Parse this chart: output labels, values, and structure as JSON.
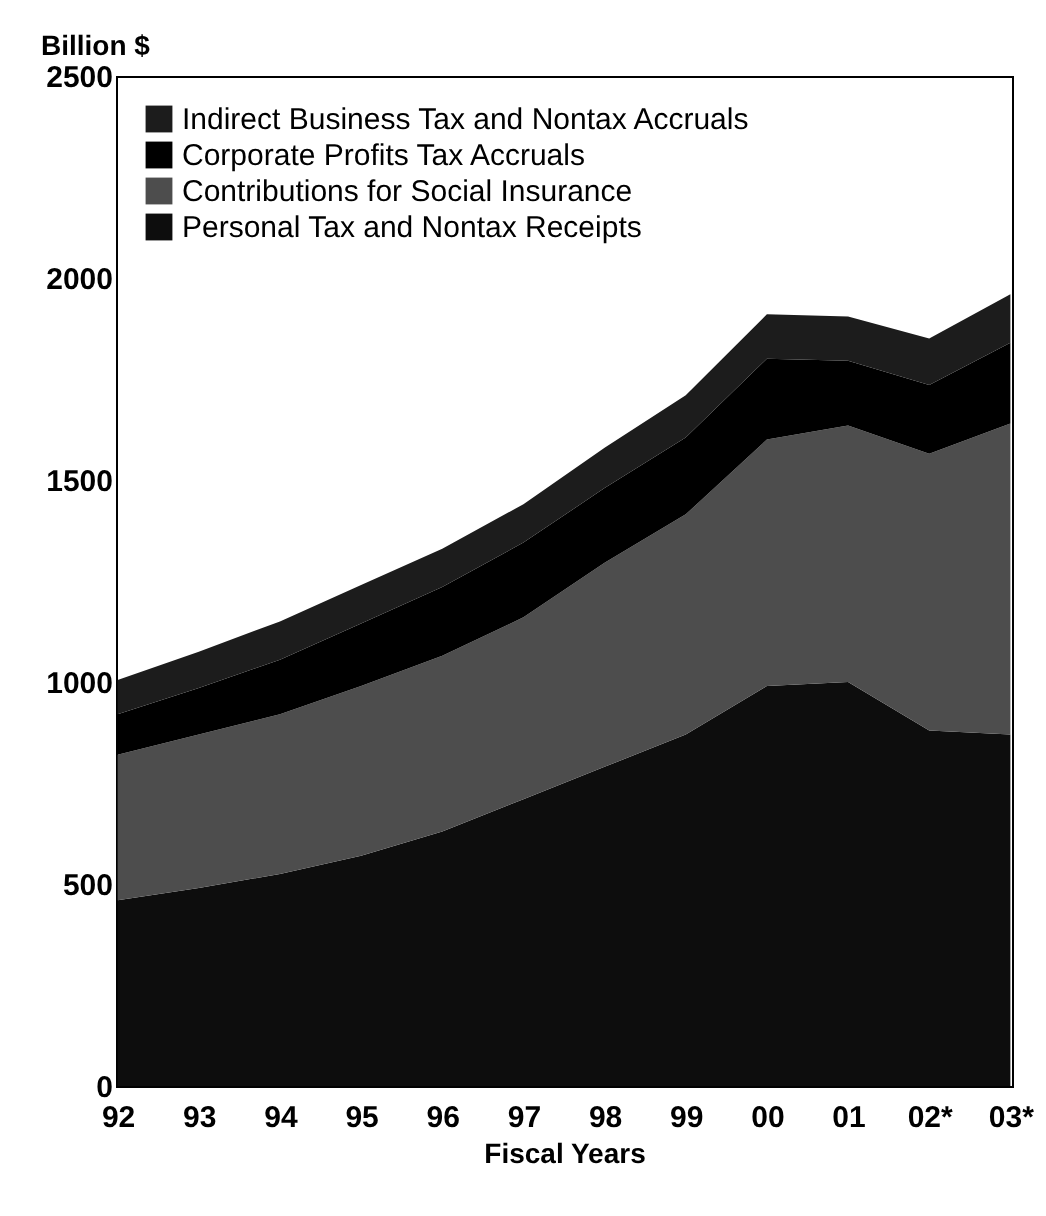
{
  "chart_data": {
    "type": "area",
    "stacked": true,
    "ylabel": "Billion $",
    "xlabel": "Fiscal Years",
    "categories": [
      "92",
      "93",
      "94",
      "95",
      "96",
      "97",
      "98",
      "99",
      "00",
      "01",
      "02*",
      "03*"
    ],
    "series": [
      {
        "name": "Personal Tax and Nontax Receipts",
        "color": "#0d0d0d",
        "values": [
          460,
          490,
          525,
          570,
          630,
          710,
          790,
          870,
          990,
          1000,
          880,
          870
        ]
      },
      {
        "name": "Contributions for Social Insurance",
        "color": "#4d4d4d",
        "values": [
          360,
          380,
          395,
          420,
          435,
          450,
          505,
          545,
          610,
          635,
          685,
          770
        ]
      },
      {
        "name": "Corporate Profits Tax Accruals",
        "color": "#000000",
        "values": [
          100,
          115,
          135,
          155,
          170,
          185,
          185,
          190,
          200,
          160,
          170,
          200
        ]
      },
      {
        "name": "Indirect Business Tax and Nontax Accruals",
        "color": "#1c1c1c",
        "values": [
          85,
          90,
          95,
          95,
          95,
          95,
          100,
          105,
          110,
          110,
          115,
          120
        ]
      }
    ],
    "ylim": [
      0,
      2500
    ],
    "yticks": [
      0,
      500,
      1000,
      1500,
      2000,
      2500
    ],
    "legend": "top left"
  }
}
